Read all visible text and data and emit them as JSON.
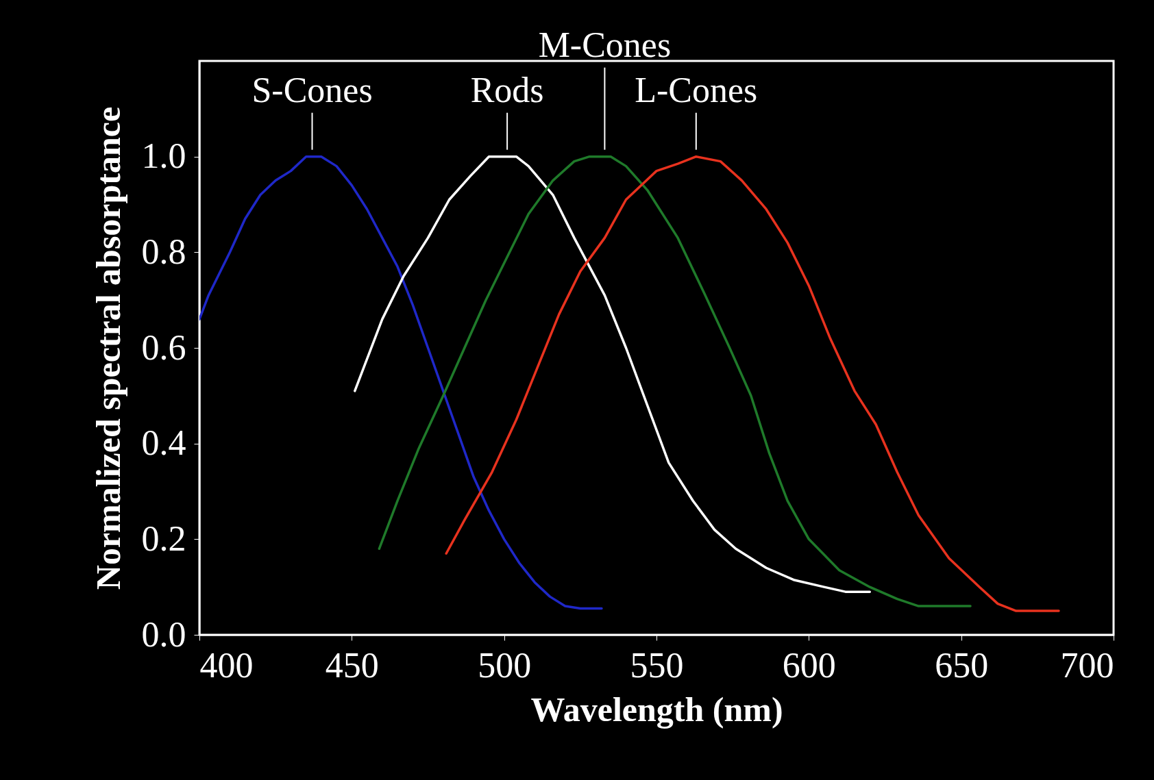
{
  "chart_data": {
    "type": "line",
    "xlabel": "Wavelength (nm)",
    "ylabel": "Normalized spectral absorptance",
    "xlim": [
      400,
      700
    ],
    "xticks": [
      400,
      450,
      500,
      550,
      600,
      650,
      700
    ],
    "ylim": [
      0,
      1.2
    ],
    "yticks": [
      {
        "value": 0,
        "label": "0.0"
      },
      {
        "value": 0.2,
        "label": "0.2"
      },
      {
        "value": 0.4,
        "label": "0.4"
      },
      {
        "value": 0.6,
        "label": "0.6"
      },
      {
        "value": 0.8,
        "label": "0.8"
      },
      {
        "value": 1,
        "label": "1.0"
      }
    ],
    "grid": false,
    "legend": false,
    "series": [
      {
        "color": "#1f28c8",
        "x": [
          400,
          403,
          410,
          415,
          420,
          425,
          430,
          435,
          440,
          445,
          450,
          455,
          460,
          465,
          470,
          475,
          480,
          485,
          490,
          495,
          500,
          505,
          510,
          515,
          520,
          525,
          532
        ],
        "values": [
          0.66,
          0.71,
          0.8,
          0.87,
          0.92,
          0.95,
          0.97,
          1.0,
          1.0,
          0.98,
          0.94,
          0.89,
          0.83,
          0.77,
          0.69,
          0.6,
          0.51,
          0.42,
          0.33,
          0.26,
          0.2,
          0.15,
          0.11,
          0.08,
          0.06,
          0.055,
          0.055
        ]
      },
      {
        "color": "#ffffff",
        "x": [
          451,
          454,
          460,
          467,
          475,
          482,
          489,
          495,
          504,
          508,
          516,
          523,
          533,
          540,
          547,
          554,
          562,
          569,
          576,
          586,
          595,
          605,
          612,
          620
        ],
        "values": [
          0.51,
          0.56,
          0.66,
          0.75,
          0.83,
          0.91,
          0.96,
          1.0,
          1.0,
          0.98,
          0.92,
          0.83,
          0.71,
          0.6,
          0.48,
          0.36,
          0.28,
          0.22,
          0.18,
          0.14,
          0.115,
          0.1,
          0.09,
          0.09
        ]
      },
      {
        "color": "#1f7a2a",
        "x": [
          459,
          465,
          472,
          480,
          487,
          494,
          501,
          508,
          516,
          523,
          528,
          535,
          540,
          547,
          557,
          566,
          574,
          581,
          587,
          593,
          600,
          610,
          620,
          629,
          636,
          653
        ],
        "values": [
          0.18,
          0.28,
          0.39,
          0.5,
          0.6,
          0.7,
          0.79,
          0.88,
          0.95,
          0.99,
          1.0,
          1.0,
          0.98,
          0.93,
          0.83,
          0.71,
          0.6,
          0.5,
          0.38,
          0.28,
          0.2,
          0.135,
          0.1,
          0.075,
          0.06,
          0.06
        ]
      },
      {
        "color": "#e8321e",
        "x": [
          481,
          487,
          496,
          504,
          511,
          518,
          525,
          533,
          540,
          550,
          557,
          563,
          571,
          578,
          586,
          593,
          600,
          607,
          615,
          622,
          629,
          636,
          646,
          656,
          662,
          668,
          682
        ],
        "values": [
          0.17,
          0.24,
          0.34,
          0.45,
          0.56,
          0.67,
          0.76,
          0.83,
          0.91,
          0.97,
          0.985,
          1.0,
          0.99,
          0.95,
          0.89,
          0.82,
          0.73,
          0.62,
          0.51,
          0.44,
          0.34,
          0.25,
          0.16,
          0.1,
          0.065,
          0.05,
          0.05
        ]
      }
    ],
    "annotations": [
      {
        "text": "S-Cones",
        "x": 437,
        "y": 1.0
      },
      {
        "text": "Rods",
        "x": 501,
        "y": 1.0
      },
      {
        "text": "M-Cones",
        "x": 533,
        "y": 1.0
      },
      {
        "text": "L-Cones",
        "x": 563,
        "y": 1.0
      }
    ]
  }
}
